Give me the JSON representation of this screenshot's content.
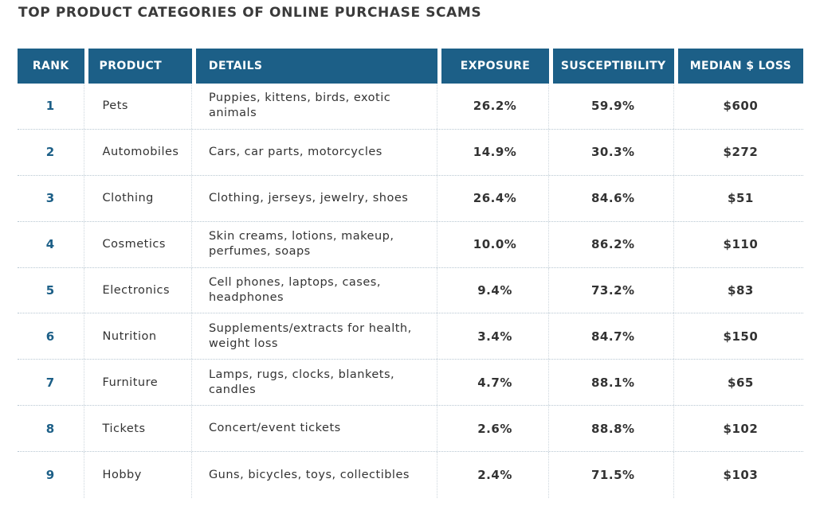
{
  "title": "TOP PRODUCT CATEGORIES OF ONLINE PURCHASE SCAMS",
  "colors": {
    "header_background": "#1c5f87",
    "header_text": "#ffffff",
    "rank_text": "#1c5f87"
  },
  "columns": [
    "RANK",
    "PRODUCT",
    "DETAILS",
    "EXPOSURE",
    "SUSCEPTIBILITY",
    "MEDIAN $ LOSS"
  ],
  "rows": [
    {
      "rank": "1",
      "product": "Pets",
      "details": "Puppies, kittens, birds, exotic animals",
      "exposure": "26.2%",
      "susceptibility": "59.9%",
      "median_loss": "$600"
    },
    {
      "rank": "2",
      "product": "Automobiles",
      "details": "Cars, car parts, motorcycles",
      "exposure": "14.9%",
      "susceptibility": "30.3%",
      "median_loss": "$272"
    },
    {
      "rank": "3",
      "product": "Clothing",
      "details": "Clothing, jerseys, jewelry, shoes",
      "exposure": "26.4%",
      "susceptibility": "84.6%",
      "median_loss": "$51"
    },
    {
      "rank": "4",
      "product": "Cosmetics",
      "details": "Skin creams, lotions, makeup, perfumes, soaps",
      "exposure": "10.0%",
      "susceptibility": "86.2%",
      "median_loss": "$110"
    },
    {
      "rank": "5",
      "product": "Electronics",
      "details": "Cell phones, laptops, cases, headphones",
      "exposure": "9.4%",
      "susceptibility": "73.2%",
      "median_loss": "$83"
    },
    {
      "rank": "6",
      "product": "Nutrition",
      "details": "Supplements/extracts for health, weight loss",
      "exposure": "3.4%",
      "susceptibility": "84.7%",
      "median_loss": "$150"
    },
    {
      "rank": "7",
      "product": "Furniture",
      "details": "Lamps, rugs, clocks, blankets, candles",
      "exposure": "4.7%",
      "susceptibility": "88.1%",
      "median_loss": "$65"
    },
    {
      "rank": "8",
      "product": "Tickets",
      "details": "Concert/event tickets",
      "exposure": "2.6%",
      "susceptibility": "88.8%",
      "median_loss": "$102"
    },
    {
      "rank": "9",
      "product": "Hobby",
      "details": "Guns, bicycles, toys, collectibles",
      "exposure": "2.4%",
      "susceptibility": "71.5%",
      "median_loss": "$103"
    }
  ]
}
